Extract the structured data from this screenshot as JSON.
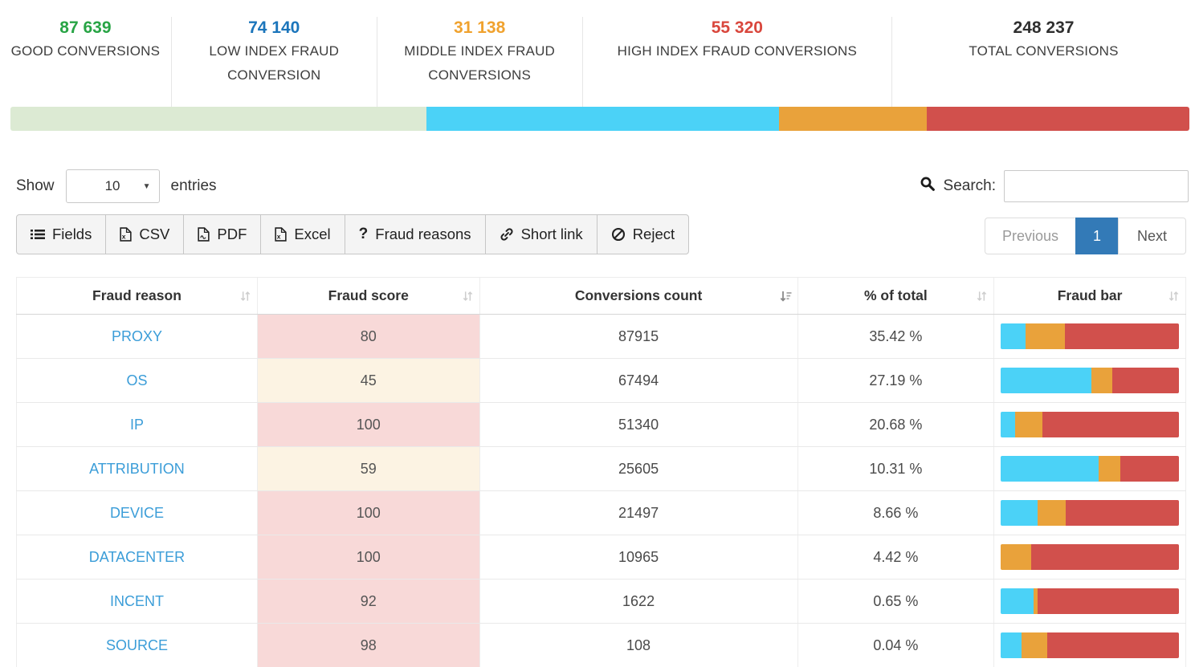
{
  "stats": [
    {
      "key": "good",
      "value": "87 639",
      "label": "GOOD CONVERSIONS",
      "color": "#28a445"
    },
    {
      "key": "low-index",
      "value": "74 140",
      "label": "LOW INDEX FRAUD CONVERSION",
      "color": "#1b75bb"
    },
    {
      "key": "middle-index",
      "value": "31 138",
      "label": "MIDDLE INDEX FRAUD CONVERSIONS",
      "color": "#f0a22e"
    },
    {
      "key": "high-index",
      "value": "55 320",
      "label": "HIGH INDEX FRAUD CONVERSIONS",
      "color": "#d9473d"
    },
    {
      "key": "total",
      "value": "248 237",
      "label": "TOTAL CONVERSIONS",
      "color": "#2f2f2f"
    }
  ],
  "summary_bar": {
    "segments": [
      {
        "name": "good-conversions",
        "percent": 35.3,
        "color": "#dcead3"
      },
      {
        "name": "low-index-fraud-conversions",
        "percent": 29.87,
        "color": "#4bd2f7"
      },
      {
        "name": "middle-index-fraud-conversions",
        "percent": 12.54,
        "color": "#e9a23b"
      },
      {
        "name": "high-index-fraud-conversions",
        "percent": 22.28,
        "color": "#d1504c"
      }
    ]
  },
  "controls": {
    "show_label": "Show",
    "page_length": "10",
    "entries_label": "entries",
    "search_label": "Search:",
    "search_value": "",
    "search_placeholder": ""
  },
  "toolbar": {
    "buttons": [
      {
        "key": "fields",
        "label": "Fields",
        "icon": "list-icon"
      },
      {
        "key": "csv",
        "label": "CSV",
        "icon": "file-csv-icon"
      },
      {
        "key": "pdf",
        "label": "PDF",
        "icon": "file-pdf-icon"
      },
      {
        "key": "excel",
        "label": "Excel",
        "icon": "file-excel-icon"
      },
      {
        "key": "fraud-reasons",
        "label": "Fraud reasons",
        "icon": "question-icon"
      },
      {
        "key": "short-link",
        "label": "Short link",
        "icon": "link-icon"
      },
      {
        "key": "reject",
        "label": "Reject",
        "icon": "reject-icon"
      }
    ]
  },
  "pagination": {
    "previous": "Previous",
    "current_page": "1",
    "next": "Next",
    "active_color": "#337ab7"
  },
  "table": {
    "columns": [
      {
        "label": "Fraud reason",
        "sort": "both"
      },
      {
        "label": "Fraud score",
        "sort": "both"
      },
      {
        "label": "Conversions count",
        "sort": "desc"
      },
      {
        "label": "% of total",
        "sort": "both"
      },
      {
        "label": "Fraud bar",
        "sort": "both"
      }
    ],
    "rows": [
      {
        "reason": "PROXY",
        "score": 80,
        "count": "87915",
        "percent": "35.42 %",
        "bar": [
          14,
          22,
          64
        ]
      },
      {
        "reason": "OS",
        "score": 45,
        "count": "67494",
        "percent": "27.19 %",
        "bar": [
          51,
          11.5,
          37.5
        ]
      },
      {
        "reason": "IP",
        "score": 100,
        "count": "51340",
        "percent": "20.68 %",
        "bar": [
          8,
          15.5,
          76.5
        ]
      },
      {
        "reason": "ATTRIBUTION",
        "score": 59,
        "count": "25605",
        "percent": "10.31 %",
        "bar": [
          55,
          12,
          33
        ]
      },
      {
        "reason": "DEVICE",
        "score": 100,
        "count": "21497",
        "percent": "8.66 %",
        "bar": [
          20.5,
          16,
          63.5
        ]
      },
      {
        "reason": "DATACENTER",
        "score": 100,
        "count": "10965",
        "percent": "4.42 %",
        "bar": [
          0,
          17,
          83
        ]
      },
      {
        "reason": "INCENT",
        "score": 92,
        "count": "1622",
        "percent": "0.65 %",
        "bar": [
          18.3,
          2.2,
          79.5
        ]
      },
      {
        "reason": "SOURCE",
        "score": 98,
        "count": "108",
        "percent": "0.04 %",
        "bar": [
          11.6,
          14.3,
          74.1
        ]
      }
    ],
    "bar_colors": [
      "#4bd2f7",
      "#e9a23b",
      "#d1504c"
    ],
    "score_colors": {
      "high": "#f8d9d8",
      "mid": "#fcf3e3"
    }
  }
}
